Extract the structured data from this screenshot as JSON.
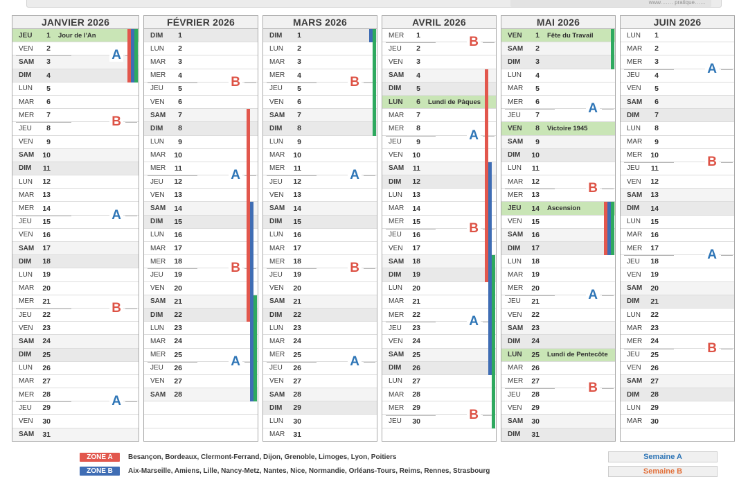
{
  "top_bar": {
    "visible_text": "www.…… pratique……"
  },
  "colors": {
    "zone_a": "#e2574d",
    "zone_b": "#3f6db4",
    "zone_c": "#2fa95f",
    "week_a": "#2e75b6",
    "week_b": "#dd5245",
    "semaine_b": "#e2703a",
    "holiday_bg": "#c9e5b6"
  },
  "legend": {
    "zone_a": {
      "label": "ZONE A",
      "cities": "Besançon, Bordeaux, Clermont-Ferrand, Dijon, Grenoble, Limoges, Lyon, Poitiers"
    },
    "zone_b": {
      "label": "ZONE B",
      "cities": "Aix-Marseille, Amiens, Lille, Nancy-Metz, Nantes, Nice, Normandie, Orléans-Tours, Reims, Rennes, Strasbourg"
    }
  },
  "footer": {
    "semaine_a_label": "Semaine A",
    "semaine_b_label": "Semaine B"
  },
  "months": [
    {
      "title": "JANVIER 2026",
      "days": [
        [
          "JEU",
          1,
          "Jour de l'An"
        ],
        [
          "VEN",
          2
        ],
        [
          "SAM",
          3
        ],
        [
          "DIM",
          4
        ],
        [
          "LUN",
          5
        ],
        [
          "MAR",
          6
        ],
        [
          "MER",
          7
        ],
        [
          "JEU",
          8
        ],
        [
          "VEN",
          9
        ],
        [
          "SAM",
          10
        ],
        [
          "DIM",
          11
        ],
        [
          "LUN",
          12
        ],
        [
          "MAR",
          13
        ],
        [
          "MER",
          14
        ],
        [
          "JEU",
          15
        ],
        [
          "VEN",
          16
        ],
        [
          "SAM",
          17
        ],
        [
          "DIM",
          18
        ],
        [
          "LUN",
          19
        ],
        [
          "MAR",
          20
        ],
        [
          "MER",
          21
        ],
        [
          "JEU",
          22
        ],
        [
          "VEN",
          23
        ],
        [
          "SAM",
          24
        ],
        [
          "DIM",
          25
        ],
        [
          "LUN",
          26
        ],
        [
          "MAR",
          27
        ],
        [
          "MER",
          28
        ],
        [
          "JEU",
          29
        ],
        [
          "VEN",
          30
        ],
        [
          "SAM",
          31
        ]
      ],
      "week_labels": [
        [
          "A",
          2
        ],
        [
          "B",
          7
        ],
        [
          "A",
          14
        ],
        [
          "B",
          21
        ],
        [
          "A",
          28
        ]
      ],
      "vacations": [
        [
          "A",
          1,
          4
        ],
        [
          "B",
          1,
          4
        ],
        [
          "C",
          1,
          4
        ]
      ]
    },
    {
      "title": "FÉVRIER 2026",
      "days": [
        [
          "DIM",
          1
        ],
        [
          "LUN",
          2
        ],
        [
          "MAR",
          3
        ],
        [
          "MER",
          4
        ],
        [
          "JEU",
          5
        ],
        [
          "VEN",
          6
        ],
        [
          "SAM",
          7
        ],
        [
          "DIM",
          8
        ],
        [
          "LUN",
          9
        ],
        [
          "MAR",
          10
        ],
        [
          "MER",
          11
        ],
        [
          "JEU",
          12
        ],
        [
          "VEN",
          13
        ],
        [
          "SAM",
          14
        ],
        [
          "DIM",
          15
        ],
        [
          "LUN",
          16
        ],
        [
          "MAR",
          17
        ],
        [
          "MER",
          18
        ],
        [
          "JEU",
          19
        ],
        [
          "VEN",
          20
        ],
        [
          "SAM",
          21
        ],
        [
          "DIM",
          22
        ],
        [
          "LUN",
          23
        ],
        [
          "MAR",
          24
        ],
        [
          "MER",
          25
        ],
        [
          "JEU",
          26
        ],
        [
          "VEN",
          27
        ],
        [
          "SAM",
          28
        ]
      ],
      "week_labels": [
        [
          "B",
          4
        ],
        [
          "A",
          11
        ],
        [
          "B",
          18
        ],
        [
          "A",
          25
        ]
      ],
      "vacations": [
        [
          "A",
          7,
          22
        ],
        [
          "B",
          14,
          28
        ],
        [
          "C",
          21,
          28
        ]
      ]
    },
    {
      "title": "MARS 2026",
      "days": [
        [
          "DIM",
          1
        ],
        [
          "LUN",
          2
        ],
        [
          "MAR",
          3
        ],
        [
          "MER",
          4
        ],
        [
          "JEU",
          5
        ],
        [
          "VEN",
          6
        ],
        [
          "SAM",
          7
        ],
        [
          "DIM",
          8
        ],
        [
          "LUN",
          9
        ],
        [
          "MAR",
          10
        ],
        [
          "MER",
          11
        ],
        [
          "JEU",
          12
        ],
        [
          "VEN",
          13
        ],
        [
          "SAM",
          14
        ],
        [
          "DIM",
          15
        ],
        [
          "LUN",
          16
        ],
        [
          "MAR",
          17
        ],
        [
          "MER",
          18
        ],
        [
          "JEU",
          19
        ],
        [
          "VEN",
          20
        ],
        [
          "SAM",
          21
        ],
        [
          "DIM",
          22
        ],
        [
          "LUN",
          23
        ],
        [
          "MAR",
          24
        ],
        [
          "MER",
          25
        ],
        [
          "JEU",
          26
        ],
        [
          "VEN",
          27
        ],
        [
          "SAM",
          28
        ],
        [
          "DIM",
          29
        ],
        [
          "LUN",
          30
        ],
        [
          "MAR",
          31
        ]
      ],
      "week_labels": [
        [
          "B",
          4
        ],
        [
          "A",
          11
        ],
        [
          "B",
          18
        ],
        [
          "A",
          25
        ]
      ],
      "vacations": [
        [
          "B",
          1,
          1
        ],
        [
          "C",
          1,
          8
        ]
      ]
    },
    {
      "title": "AVRIL 2026",
      "days": [
        [
          "MER",
          1
        ],
        [
          "JEU",
          2
        ],
        [
          "VEN",
          3
        ],
        [
          "SAM",
          4
        ],
        [
          "DIM",
          5
        ],
        [
          "LUN",
          6,
          "Lundi de Pâques"
        ],
        [
          "MAR",
          7
        ],
        [
          "MER",
          8
        ],
        [
          "JEU",
          9
        ],
        [
          "VEN",
          10
        ],
        [
          "SAM",
          11
        ],
        [
          "DIM",
          12
        ],
        [
          "LUN",
          13
        ],
        [
          "MAR",
          14
        ],
        [
          "MER",
          15
        ],
        [
          "JEU",
          16
        ],
        [
          "VEN",
          17
        ],
        [
          "SAM",
          18
        ],
        [
          "DIM",
          19
        ],
        [
          "LUN",
          20
        ],
        [
          "MAR",
          21
        ],
        [
          "MER",
          22
        ],
        [
          "JEU",
          23
        ],
        [
          "VEN",
          24
        ],
        [
          "SAM",
          25
        ],
        [
          "DIM",
          26
        ],
        [
          "LUN",
          27
        ],
        [
          "MAR",
          28
        ],
        [
          "MER",
          29
        ],
        [
          "JEU",
          30
        ]
      ],
      "week_labels": [
        [
          "B",
          1
        ],
        [
          "A",
          8
        ],
        [
          "B",
          15
        ],
        [
          "A",
          22
        ],
        [
          "B",
          29
        ]
      ],
      "vacations": [
        [
          "A",
          4,
          19
        ],
        [
          "B",
          11,
          26
        ],
        [
          "C",
          18,
          30
        ]
      ]
    },
    {
      "title": "MAI 2026",
      "days": [
        [
          "VEN",
          1,
          "Fête du Travail"
        ],
        [
          "SAM",
          2
        ],
        [
          "DIM",
          3
        ],
        [
          "LUN",
          4
        ],
        [
          "MAR",
          5
        ],
        [
          "MER",
          6
        ],
        [
          "JEU",
          7
        ],
        [
          "VEN",
          8,
          "Victoire 1945"
        ],
        [
          "SAM",
          9
        ],
        [
          "DIM",
          10
        ],
        [
          "LUN",
          11
        ],
        [
          "MAR",
          12
        ],
        [
          "MER",
          13
        ],
        [
          "JEU",
          14,
          "Ascension"
        ],
        [
          "VEN",
          15
        ],
        [
          "SAM",
          16
        ],
        [
          "DIM",
          17
        ],
        [
          "LUN",
          18
        ],
        [
          "MAR",
          19
        ],
        [
          "MER",
          20
        ],
        [
          "JEU",
          21
        ],
        [
          "VEN",
          22
        ],
        [
          "SAM",
          23
        ],
        [
          "DIM",
          24
        ],
        [
          "LUN",
          25,
          "Lundi de Pentecôte"
        ],
        [
          "MAR",
          26
        ],
        [
          "MER",
          27
        ],
        [
          "JEU",
          28
        ],
        [
          "VEN",
          29
        ],
        [
          "SAM",
          30
        ],
        [
          "DIM",
          31
        ]
      ],
      "week_labels": [
        [
          "A",
          6
        ],
        [
          "B",
          12
        ],
        [
          "A",
          20
        ],
        [
          "B",
          27
        ]
      ],
      "vacations": [
        [
          "C",
          1,
          3
        ],
        [
          "A",
          14,
          17
        ],
        [
          "B",
          14,
          17
        ],
        [
          "C",
          14,
          17
        ]
      ]
    },
    {
      "title": "JUIN 2026",
      "days": [
        [
          "LUN",
          1
        ],
        [
          "MAR",
          2
        ],
        [
          "MER",
          3
        ],
        [
          "JEU",
          4
        ],
        [
          "VEN",
          5
        ],
        [
          "SAM",
          6
        ],
        [
          "DIM",
          7
        ],
        [
          "LUN",
          8
        ],
        [
          "MAR",
          9
        ],
        [
          "MER",
          10
        ],
        [
          "JEU",
          11
        ],
        [
          "VEN",
          12
        ],
        [
          "SAM",
          13
        ],
        [
          "DIM",
          14
        ],
        [
          "LUN",
          15
        ],
        [
          "MAR",
          16
        ],
        [
          "MER",
          17
        ],
        [
          "JEU",
          18
        ],
        [
          "VEN",
          19
        ],
        [
          "SAM",
          20
        ],
        [
          "DIM",
          21
        ],
        [
          "LUN",
          22
        ],
        [
          "MAR",
          23
        ],
        [
          "MER",
          24
        ],
        [
          "JEU",
          25
        ],
        [
          "VEN",
          26
        ],
        [
          "SAM",
          27
        ],
        [
          "DIM",
          28
        ],
        [
          "LUN",
          29
        ],
        [
          "MAR",
          30
        ]
      ],
      "week_labels": [
        [
          "A",
          3
        ],
        [
          "B",
          10
        ],
        [
          "A",
          17
        ],
        [
          "B",
          24
        ]
      ],
      "vacations": []
    }
  ]
}
